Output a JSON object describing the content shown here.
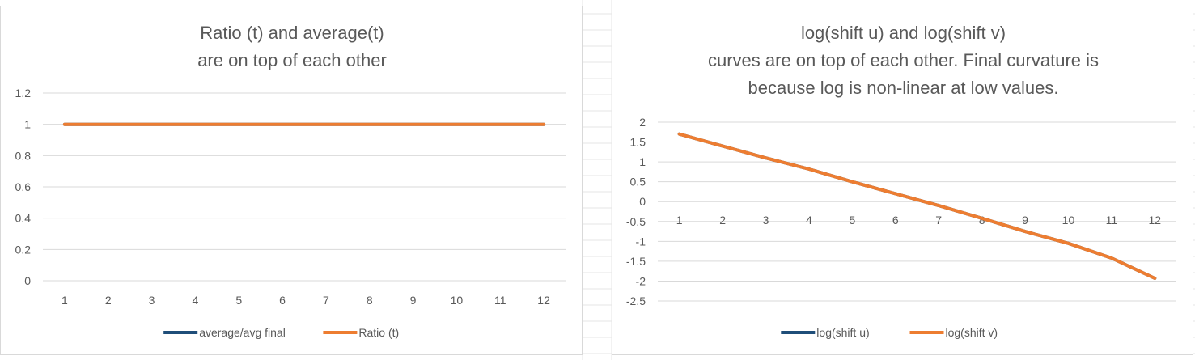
{
  "colors": {
    "series_blue": "#1F4E79",
    "series_orange": "#ED7D31",
    "gridline": "#d9d9d9",
    "text": "#595959"
  },
  "chart_data": [
    {
      "type": "line",
      "title_lines": [
        "Ratio (t) and average(t)",
        "are on top of each other"
      ],
      "x": [
        1,
        2,
        3,
        4,
        5,
        6,
        7,
        8,
        9,
        10,
        11,
        12
      ],
      "x_tick_labels": [
        "1",
        "2",
        "3",
        "4",
        "5",
        "6",
        "7",
        "8",
        "9",
        "10",
        "11",
        "12"
      ],
      "y_tick_labels": [
        "0",
        "0.2",
        "0.4",
        "0.6",
        "0.8",
        "1",
        "1.2"
      ],
      "ylim": [
        0,
        1.2
      ],
      "grid": true,
      "legend_position": "bottom",
      "series": [
        {
          "name": "average/avg final",
          "color": "#1F4E79",
          "values": [
            1,
            1,
            1,
            1,
            1,
            1,
            1,
            1,
            1,
            1,
            1,
            1
          ]
        },
        {
          "name": "Ratio (t)",
          "color": "#ED7D31",
          "values": [
            1,
            1,
            1,
            1,
            1,
            1,
            1,
            1,
            1,
            1,
            1,
            1
          ]
        }
      ]
    },
    {
      "type": "line",
      "title_lines": [
        "log(shift u) and log(shift v)",
        "curves are on top of each other. Final curvature is",
        "because log is non-linear at low values."
      ],
      "x": [
        1,
        2,
        3,
        4,
        5,
        6,
        7,
        8,
        9,
        10,
        11,
        12
      ],
      "x_tick_labels": [
        "1",
        "2",
        "3",
        "4",
        "5",
        "6",
        "7",
        "8",
        "9",
        "10",
        "11",
        "12"
      ],
      "y_tick_labels": [
        "-2.5",
        "-2",
        "-1.5",
        "-1",
        "-0.5",
        "0",
        "0.5",
        "1",
        "1.5",
        "2"
      ],
      "ylim": [
        -2.5,
        2
      ],
      "grid": true,
      "legend_position": "bottom",
      "series": [
        {
          "name": "log(shift u)",
          "color": "#1F4E79",
          "values": [
            1.7,
            1.4,
            1.1,
            0.82,
            0.5,
            0.2,
            -0.1,
            -0.42,
            -0.75,
            -1.05,
            -1.42,
            -1.93
          ]
        },
        {
          "name": "log(shift v)",
          "color": "#ED7D31",
          "values": [
            1.7,
            1.4,
            1.1,
            0.82,
            0.5,
            0.2,
            -0.1,
            -0.42,
            -0.75,
            -1.05,
            -1.42,
            -1.93
          ]
        }
      ]
    }
  ]
}
